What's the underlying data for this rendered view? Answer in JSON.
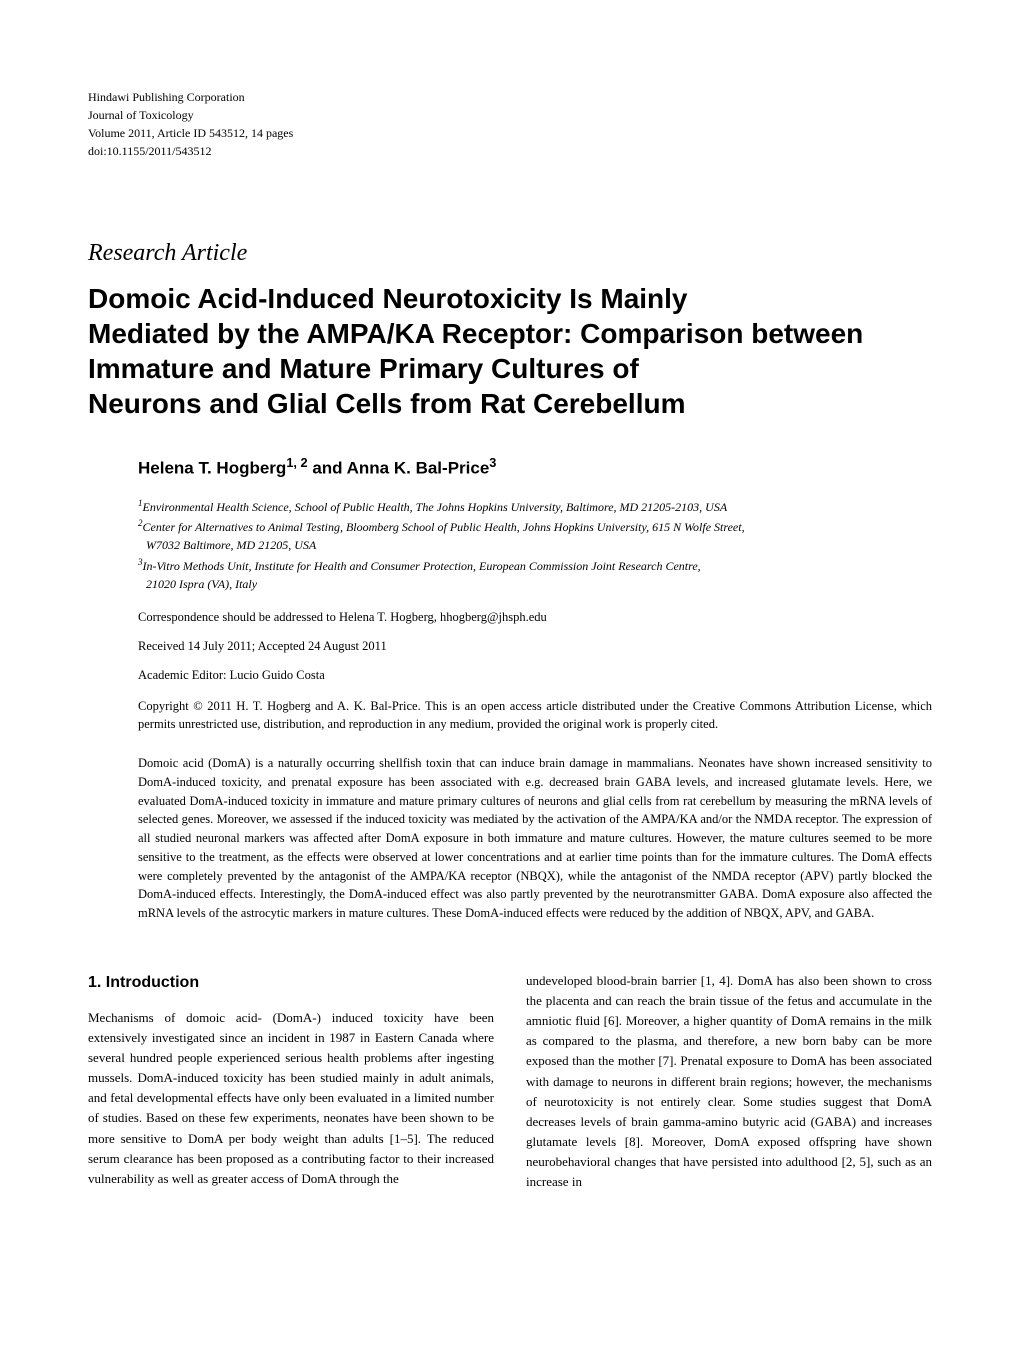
{
  "journal_info": {
    "publisher": "Hindawi Publishing Corporation",
    "journal": "Journal of Toxicology",
    "volume": "Volume 2011, Article ID 543512, 14 pages",
    "doi": "doi:10.1155/2011/543512"
  },
  "section_label": "Research Article",
  "title_lines": [
    "Domoic Acid-Induced Neurotoxicity Is Mainly",
    "Mediated by the AMPA/KA Receptor: Comparison between",
    "Immature and Mature Primary Cultures of",
    "Neurons and Glial Cells from Rat Cerebellum"
  ],
  "authors_prefix": "Helena T. Hogberg",
  "authors_sup1": "1, 2",
  "authors_middle": " and Anna K. Bal-Price",
  "authors_sup2": "3",
  "affiliations": [
    {
      "sup": "1",
      "text": "Environmental Health Science, School of Public Health, The Johns Hopkins University, Baltimore, MD 21205-2103, USA"
    },
    {
      "sup": "2",
      "text": "Center for Alternatives to Animal Testing, Bloomberg School of Public Health, Johns Hopkins University, 615 N Wolfe Street,"
    },
    {
      "sup": "",
      "text": "W7032 Baltimore, MD 21205, USA",
      "indent": true
    },
    {
      "sup": "3",
      "text": "In-Vitro Methods Unit, Institute for Health and Consumer Protection, European Commission Joint Research Centre,"
    },
    {
      "sup": "",
      "text": "21020 Ispra (VA), Italy",
      "indent": true
    }
  ],
  "correspondence": "Correspondence should be addressed to Helena T. Hogberg, hhogberg@jhsph.edu",
  "received": "Received 14 July 2011; Accepted 24 August 2011",
  "editor": "Academic Editor: Lucio Guido Costa",
  "copyright": "Copyright © 2011 H. T. Hogberg and A. K. Bal-Price. This is an open access article distributed under the Creative Commons Attribution License, which permits unrestricted use, distribution, and reproduction in any medium, provided the original work is properly cited.",
  "abstract": "Domoic acid (DomA) is a naturally occurring shellfish toxin that can induce brain damage in mammalians. Neonates have shown increased sensitivity to DomA-induced toxicity, and prenatal exposure has been associated with e.g. decreased brain GABA levels, and increased glutamate levels. Here, we evaluated DomA-induced toxicity in immature and mature primary cultures of neurons and glial cells from rat cerebellum by measuring the mRNA levels of selected genes. Moreover, we assessed if the induced toxicity was mediated by the activation of the AMPA/KA and/or the NMDA receptor. The expression of all studied neuronal markers was affected after DomA exposure in both immature and mature cultures. However, the mature cultures seemed to be more sensitive to the treatment, as the effects were observed at lower concentrations and at earlier time points than for the immature cultures. The DomA effects were completely prevented by the antagonist of the AMPA/KA receptor (NBQX), while the antagonist of the NMDA receptor (APV) partly blocked the DomA-induced effects. Interestingly, the DomA-induced effect was also partly prevented by the neurotransmitter GABA. DomA exposure also affected the mRNA levels of the astrocytic markers in mature cultures. These DomA-induced effects were reduced by the addition of NBQX, APV, and GABA.",
  "introduction_heading": "1. Introduction",
  "column_left": "Mechanisms of domoic acid- (DomA-) induced toxicity have been extensively investigated since an incident in 1987 in Eastern Canada where several hundred people experienced serious health problems after ingesting mussels. DomA-induced toxicity has been studied mainly in adult animals, and fetal developmental effects have only been evaluated in a limited number of studies. Based on these few experiments, neonates have been shown to be more sensitive to DomA per body weight than adults [1–5]. The reduced serum clearance has been proposed as a contributing factor to their increased vulnerability as well as greater access of DomA through the",
  "column_right": "undeveloped blood-brain barrier [1, 4]. DomA has also been shown to cross the placenta and can reach the brain tissue of the fetus and accumulate in the amniotic fluid [6]. Moreover, a higher quantity of DomA remains in the milk as compared to the plasma, and therefore, a new born baby can be more exposed than the mother [7]. Prenatal exposure to DomA has been associated with damage to neurons in different brain regions; however, the mechanisms of neurotoxicity is not entirely clear. Some studies suggest that DomA decreases levels of brain gamma-amino butyric acid (GABA) and increases glutamate levels [8]. Moreover, DomA exposed offspring have shown neurobehavioral changes that have persisted into adulthood [2, 5], such as an increase in"
}
